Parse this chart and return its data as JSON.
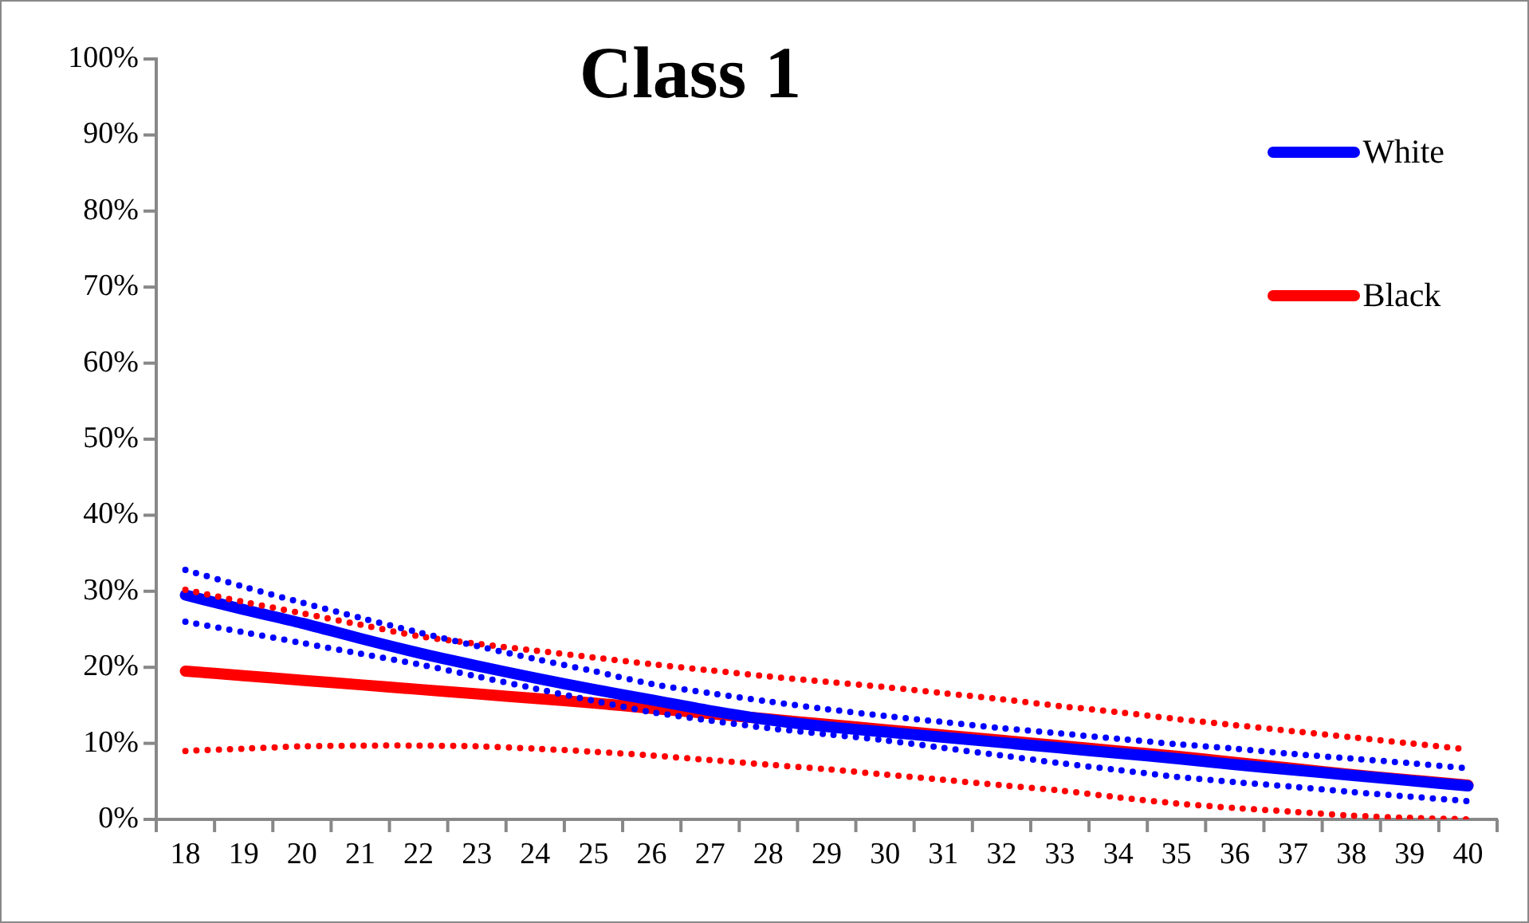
{
  "chart_data": {
    "type": "line",
    "title": "Class 1",
    "categories": [
      "18",
      "19",
      "20",
      "21",
      "22",
      "23",
      "24",
      "25",
      "26",
      "27",
      "28",
      "29",
      "30",
      "31",
      "32",
      "33",
      "34",
      "35",
      "36",
      "37",
      "38",
      "39",
      "40"
    ],
    "series": [
      {
        "color": "#0000ff",
        "line_style": "dotted",
        "values": [
          32.8,
          30.6,
          28.5,
          26.5,
          24.6,
          22.8,
          21.1,
          19.5,
          17.8,
          16.6,
          15.5,
          14.5,
          13.6,
          12.8,
          12.0,
          11.3,
          10.6,
          9.9,
          9.3,
          8.6,
          8.0,
          7.4,
          6.7
        ]
      },
      {
        "color": "#0000ff",
        "line_style": "dotted",
        "values": [
          26.0,
          24.6,
          23.2,
          21.8,
          20.4,
          18.8,
          17.2,
          15.6,
          14.1,
          13.0,
          12.0,
          11.2,
          10.4,
          9.4,
          8.4,
          7.4,
          6.5,
          5.6,
          4.9,
          4.3,
          3.6,
          3.0,
          2.4
        ]
      },
      {
        "color": "#ff0000",
        "line_style": "dotted",
        "values": [
          30.2,
          28.6,
          27.1,
          25.6,
          24.1,
          23.1,
          22.2,
          21.3,
          20.4,
          19.6,
          18.8,
          18.1,
          17.4,
          16.6,
          15.8,
          14.9,
          14.1,
          13.2,
          12.4,
          11.6,
          10.8,
          10.0,
          9.2
        ]
      },
      {
        "color": "#ff0000",
        "line_style": "dotted",
        "values": [
          9.0,
          9.3,
          9.6,
          9.7,
          9.7,
          9.6,
          9.3,
          8.9,
          8.4,
          7.8,
          7.2,
          6.6,
          5.9,
          5.2,
          4.5,
          3.8,
          2.9,
          2.1,
          1.5,
          1.0,
          0.5,
          0.2,
          0
        ]
      },
      {
        "name": "White",
        "color": "#0000ff",
        "values": [
          29.5,
          27.6,
          25.8,
          23.8,
          21.9,
          20.2,
          18.6,
          17.1,
          15.7,
          14.3,
          13.1,
          12.2,
          11.5,
          10.8,
          10.1,
          9.4,
          8.7,
          8.0,
          7.2,
          6.5,
          5.8,
          5.1,
          4.4
        ]
      },
      {
        "name": "Black",
        "color": "#ff0000",
        "values": [
          19.5,
          18.9,
          18.3,
          17.7,
          17.1,
          16.5,
          15.9,
          15.3,
          14.6,
          13.9,
          13.2,
          12.5,
          11.8,
          11.1,
          10.4,
          9.7,
          9.0,
          8.3,
          7.5,
          6.7,
          5.9,
          5.2,
          4.5
        ]
      }
    ],
    "ylim": [
      0,
      100
    ],
    "yticks": [
      {
        "value": 0,
        "label": "0%"
      },
      {
        "value": 10,
        "label": "10%"
      },
      {
        "value": 20,
        "label": "20%"
      },
      {
        "value": 30,
        "label": "30%"
      },
      {
        "value": 40,
        "label": "40%"
      },
      {
        "value": 50,
        "label": "50%"
      },
      {
        "value": 60,
        "label": "60%"
      },
      {
        "value": 70,
        "label": "70%"
      },
      {
        "value": 80,
        "label": "80%"
      },
      {
        "value": 90,
        "label": "90%"
      },
      {
        "value": 100,
        "label": "100%"
      }
    ],
    "grid": false,
    "legend": "top right",
    "marker": "none",
    "line_style": "solid"
  }
}
